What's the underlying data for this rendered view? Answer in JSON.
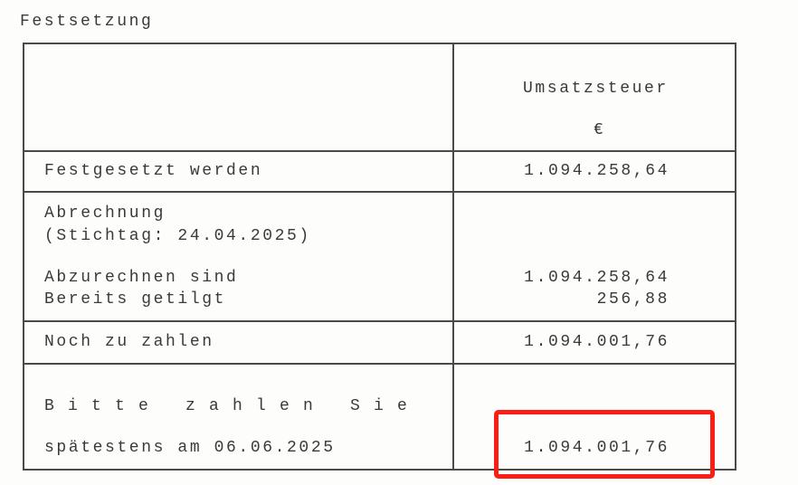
{
  "section_title": "Festsetzung",
  "table": {
    "column_header": "Umsatzsteuer",
    "currency": "€",
    "rows": {
      "festgesetzt": {
        "label": "Festgesetzt werden",
        "value": "1.094.258,64"
      },
      "abrechnung": {
        "label": "Abrechnung",
        "stichtag": "(Stichtag: 24.04.2025)",
        "abzurechnen_label": "Abzurechnen sind",
        "abzurechnen_value": "1.094.258,64",
        "getilgt_label": "Bereits getilgt",
        "getilgt_value": "256,88"
      },
      "noch_zu_zahlen": {
        "label": "Noch zu zahlen",
        "value": "1.094.001,76"
      },
      "zahlung": {
        "label": "Bitte zahlen Sie",
        "due": "spätestens am 06.06.2025",
        "value": "1.094.001,76"
      }
    }
  },
  "highlight_color": "#fa1e14"
}
